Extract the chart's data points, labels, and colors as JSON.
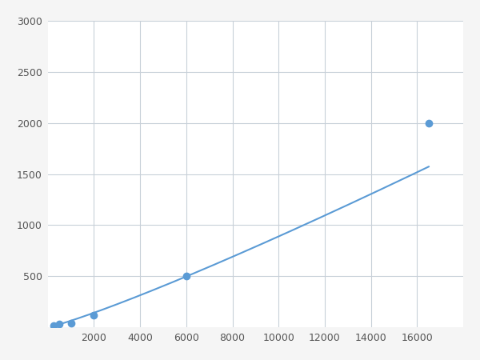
{
  "x": [
    250,
    500,
    1000,
    2000,
    6000,
    16500
  ],
  "y": [
    20,
    30,
    40,
    120,
    500,
    2000
  ],
  "line_color": "#5b9bd5",
  "marker_color": "#5b9bd5",
  "marker_size": 6,
  "xlim": [
    0,
    18000
  ],
  "ylim": [
    0,
    3000
  ],
  "xticks": [
    2000,
    4000,
    6000,
    8000,
    10000,
    12000,
    14000,
    16000
  ],
  "yticks": [
    500,
    1000,
    1500,
    2000,
    2500,
    3000
  ],
  "grid_color": "#c8d0d8",
  "bg_color": "#ffffff",
  "fig_bg_color": "#f5f5f5",
  "figsize": [
    6.0,
    4.5
  ],
  "dpi": 100
}
